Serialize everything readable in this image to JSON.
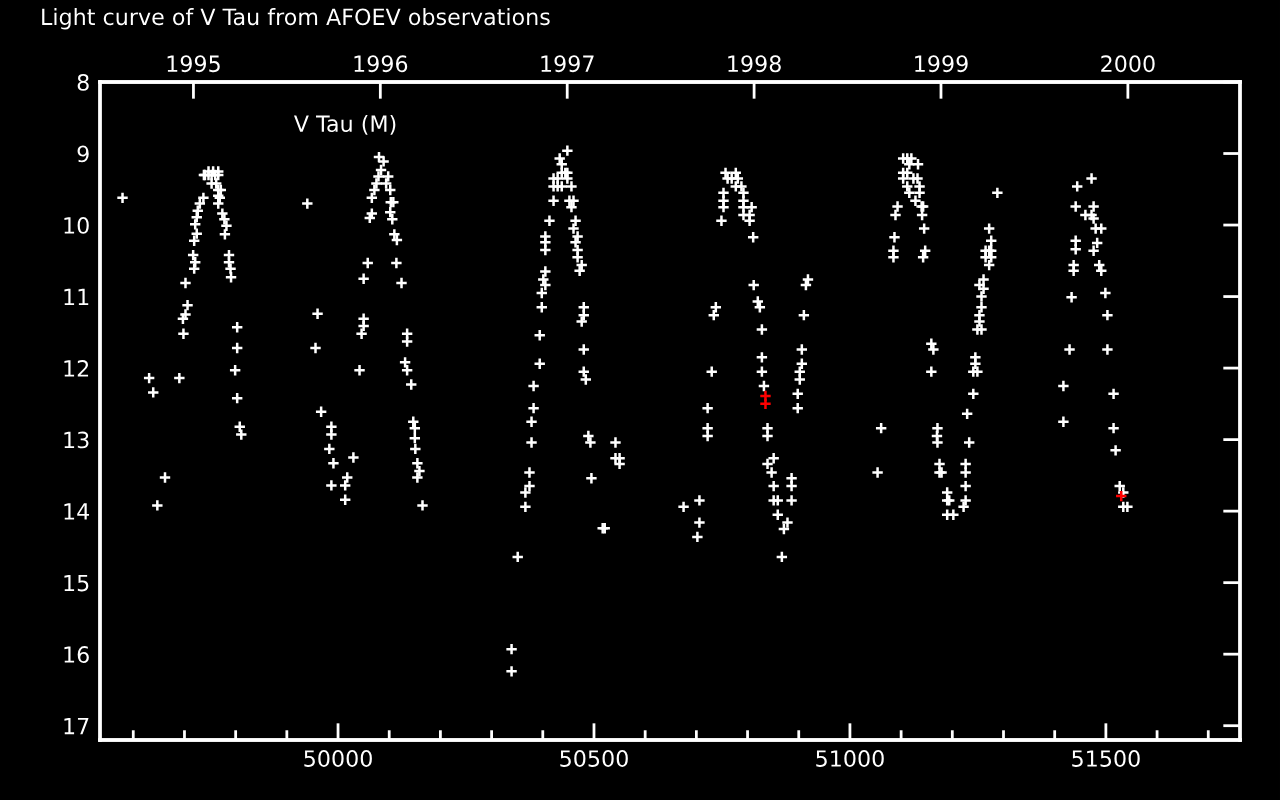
{
  "chart_data": {
    "type": "scatter",
    "title": "Light curve of V Tau from AFOEV observations",
    "annotations": [
      "V Tau (M)"
    ],
    "marker": "cross",
    "xlim": [
      49535,
      51762
    ],
    "ylim": [
      17.2,
      8
    ],
    "xticks": [
      {
        "value": 49600,
        "label": null
      },
      {
        "value": 49700,
        "label": null
      },
      {
        "value": 49800,
        "label": null
      },
      {
        "value": 49900,
        "label": null
      },
      50000,
      {
        "value": 50100,
        "label": null
      },
      {
        "value": 50200,
        "label": null
      },
      {
        "value": 50300,
        "label": null
      },
      {
        "value": 50400,
        "label": null
      },
      50500,
      {
        "value": 50600,
        "label": null
      },
      {
        "value": 50700,
        "label": null
      },
      {
        "value": 50800,
        "label": null
      },
      {
        "value": 50900,
        "label": null
      },
      51000,
      {
        "value": 51100,
        "label": null
      },
      {
        "value": 51200,
        "label": null
      },
      {
        "value": 51300,
        "label": null
      },
      {
        "value": 51400,
        "label": null
      },
      51500,
      {
        "value": 51600,
        "label": null
      },
      {
        "value": 51700,
        "label": null
      }
    ],
    "yticks": [
      8,
      9,
      10,
      11,
      12,
      13,
      14,
      15,
      16,
      17
    ],
    "x2lim": [
      1994.5,
      2000.6
    ],
    "x2ticks": [
      1995,
      1996,
      1997,
      1998,
      1999,
      2000
    ],
    "series": [
      {
        "color": "#ffffff",
        "x": [
          49579,
          49631,
          49639,
          49662,
          49647,
          49690,
          49698,
          49697,
          49702,
          49706,
          49702,
          49719,
          49721,
          49717,
          49719,
          49724,
          49721,
          49724,
          49726,
          49730,
          49737,
          49740,
          49747,
          49753,
          49760,
          49766,
          49738,
          49747,
          49756,
          49766,
          49753,
          49762,
          49766,
          49771,
          49766,
          49766,
          49769,
          49774,
          49778,
          49782,
          49779,
          49787,
          49787,
          49790,
          49791,
          49803,
          49803,
          49799,
          49803,
          49808,
          49811,
          49940,
          49960,
          49956,
          49967,
          49987,
          49987,
          49983,
          49991,
          49987,
          50014,
          50018,
          50014,
          50030,
          50042,
          50046,
          50050,
          50050,
          50050,
          50058,
          50062,
          50066,
          50066,
          50071,
          50075,
          50079,
          50084,
          50080,
          50089,
          50094,
          50098,
          50102,
          50103,
          50108,
          50102,
          50106,
          50110,
          50115,
          50114,
          50124,
          50135,
          50135,
          50131,
          50135,
          50143,
          50147,
          50150,
          50150,
          50151,
          50155,
          50159,
          50155,
          50165,
          50339,
          50339,
          50351,
          50366,
          50366,
          50374,
          50374,
          50378,
          50378,
          50382,
          50382,
          50394,
          50394,
          50398,
          50398,
          50405,
          50401,
          50405,
          50405,
          50405,
          50405,
          50413,
          50421,
          50421,
          50421,
          50429,
          50437,
          50456,
          50448,
          50429,
          50437,
          50444,
          50448,
          50437,
          50433,
          50448,
          50452,
          50460,
          50456,
          50464,
          50460,
          50468,
          50464,
          50468,
          50468,
          50476,
          50472,
          50480,
          50480,
          50476,
          50480,
          50480,
          50484,
          50489,
          50493,
          50495,
          50517,
          50521,
          50542,
          50542,
          50550,
          50550,
          50675,
          50702,
          50706,
          50706,
          50722,
          50722,
          50722,
          50730,
          50734,
          50738,
          50749,
          50753,
          50753,
          50753,
          50757,
          50761,
          50769,
          50777,
          50781,
          50777,
          50788,
          50792,
          50792,
          50792,
          50808,
          50792,
          50804,
          50804,
          50811,
          50812,
          50820,
          50824,
          50828,
          50828,
          50828,
          50832,
          50839,
          50839,
          50851,
          50839,
          50847,
          50851,
          50851,
          50859,
          50859,
          50871,
          50878,
          50867,
          50886,
          50886,
          50886,
          50898,
          50898,
          50902,
          50902,
          50906,
          50906,
          50910,
          50914,
          50918,
          51054,
          51061,
          51085,
          51085,
          51087,
          51089,
          51093,
          51104,
          51104,
          51112,
          51104,
          51112,
          51120,
          51116,
          51124,
          51132,
          51133,
          51136,
          51136,
          51128,
          51140,
          51143,
          51141,
          51145,
          51143,
          51147,
          51112,
          51116,
          51159,
          51163,
          51159,
          51171,
          51170,
          51171,
          51175,
          51175,
          51179,
          51190,
          51190,
          51194,
          51190,
          51202,
          51222,
          51226,
          51226,
          51226,
          51226,
          51233,
          51229,
          51241,
          51241,
          51249,
          51245,
          51245,
          51249,
          51257,
          51253,
          51253,
          51257,
          51257,
          51261,
          51253,
          51261,
          51272,
          51276,
          51265,
          51272,
          51265,
          51276,
          51272,
          51276,
          51288,
          51417,
          51417,
          51429,
          51433,
          51437,
          51437,
          51441,
          51441,
          51441,
          51444,
          51472,
          51476,
          51460,
          51472,
          51476,
          51480,
          51491,
          51483,
          51476,
          51487,
          51491,
          51499,
          51503,
          51503,
          51515,
          51515,
          51519,
          51527,
          51534,
          51534,
          51542
        ],
        "values": [
          9.62,
          12.14,
          12.34,
          13.53,
          13.92,
          12.14,
          11.52,
          11.31,
          11.25,
          11.12,
          10.81,
          10.61,
          10.52,
          10.42,
          10.22,
          10.12,
          9.99,
          9.89,
          9.8,
          9.7,
          9.62,
          9.3,
          9.3,
          9.3,
          9.3,
          9.3,
          9.3,
          9.25,
          9.25,
          9.25,
          9.42,
          9.42,
          9.51,
          9.51,
          9.59,
          9.7,
          9.62,
          9.84,
          9.92,
          10.01,
          10.13,
          10.42,
          10.52,
          10.61,
          10.73,
          11.43,
          11.72,
          12.03,
          12.42,
          12.82,
          12.93,
          9.7,
          11.24,
          11.72,
          12.61,
          12.82,
          12.93,
          13.13,
          13.33,
          13.64,
          13.64,
          13.53,
          13.84,
          13.25,
          12.03,
          11.52,
          11.41,
          11.31,
          10.75,
          10.53,
          9.9,
          9.84,
          9.62,
          9.51,
          9.42,
          9.32,
          9.23,
          9.05,
          9.11,
          9.42,
          9.32,
          9.51,
          9.68,
          9.68,
          9.82,
          9.92,
          10.13,
          10.21,
          10.53,
          10.81,
          11.52,
          11.63,
          11.92,
          12.03,
          12.23,
          12.75,
          12.84,
          12.98,
          13.13,
          13.33,
          13.44,
          13.53,
          13.92,
          15.93,
          16.24,
          14.64,
          13.94,
          13.74,
          13.65,
          13.46,
          13.04,
          12.75,
          12.56,
          12.25,
          11.94,
          11.54,
          11.15,
          10.95,
          10.84,
          10.76,
          10.65,
          10.35,
          10.24,
          10.16,
          9.94,
          9.66,
          9.46,
          9.35,
          9.46,
          9.46,
          9.46,
          9.35,
          9.35,
          9.27,
          9.27,
          9.27,
          9.15,
          9.07,
          8.96,
          9.66,
          9.66,
          9.75,
          9.94,
          10.05,
          10.16,
          10.24,
          10.35,
          10.45,
          10.56,
          10.64,
          11.15,
          11.26,
          11.35,
          11.74,
          12.05,
          12.16,
          12.95,
          13.04,
          13.54,
          14.24,
          14.24,
          13.04,
          13.26,
          13.26,
          13.34,
          13.94,
          14.36,
          14.16,
          13.85,
          12.95,
          12.84,
          12.56,
          12.05,
          11.26,
          11.15,
          9.94,
          9.75,
          9.66,
          9.55,
          9.27,
          9.35,
          9.35,
          9.27,
          9.35,
          9.46,
          9.46,
          9.55,
          9.66,
          9.75,
          9.75,
          9.86,
          9.86,
          9.94,
          10.17,
          10.84,
          11.07,
          11.15,
          11.46,
          11.85,
          12.05,
          12.25,
          12.84,
          12.95,
          13.26,
          13.34,
          13.46,
          13.65,
          13.85,
          13.85,
          14.05,
          14.25,
          14.16,
          14.64,
          13.54,
          13.65,
          13.85,
          12.36,
          12.56,
          12.16,
          12.05,
          11.94,
          11.74,
          11.26,
          10.84,
          10.76,
          13.46,
          12.84,
          10.45,
          10.36,
          10.17,
          9.86,
          9.74,
          9.35,
          9.27,
          9.27,
          9.07,
          9.07,
          9.07,
          9.15,
          9.35,
          9.35,
          9.15,
          9.46,
          9.55,
          9.66,
          9.74,
          9.74,
          9.86,
          10.05,
          10.45,
          10.36,
          9.46,
          9.55,
          11.66,
          11.74,
          12.05,
          12.84,
          12.95,
          13.04,
          13.34,
          13.46,
          13.46,
          13.74,
          13.85,
          13.85,
          14.05,
          14.05,
          13.94,
          13.85,
          13.65,
          13.46,
          13.34,
          13.04,
          12.64,
          12.36,
          12.05,
          12.05,
          11.94,
          11.85,
          11.46,
          11.46,
          11.35,
          11.26,
          11.15,
          11.0,
          10.89,
          10.84,
          10.76,
          10.56,
          10.45,
          10.45,
          10.36,
          10.36,
          10.36,
          10.05,
          10.22,
          9.55,
          12.75,
          12.25,
          11.74,
          11.01,
          10.64,
          10.56,
          10.34,
          10.22,
          9.74,
          9.46,
          9.35,
          9.74,
          9.86,
          9.86,
          9.91,
          10.05,
          10.05,
          10.25,
          10.36,
          10.56,
          10.64,
          10.95,
          11.26,
          11.74,
          12.36,
          12.84,
          13.15,
          13.65,
          13.74,
          13.94,
          13.94
        ]
      },
      {
        "color": "#ff0000",
        "x": [
          50835,
          50835,
          51530
        ],
        "values": [
          12.39,
          12.5,
          13.79
        ]
      }
    ]
  }
}
